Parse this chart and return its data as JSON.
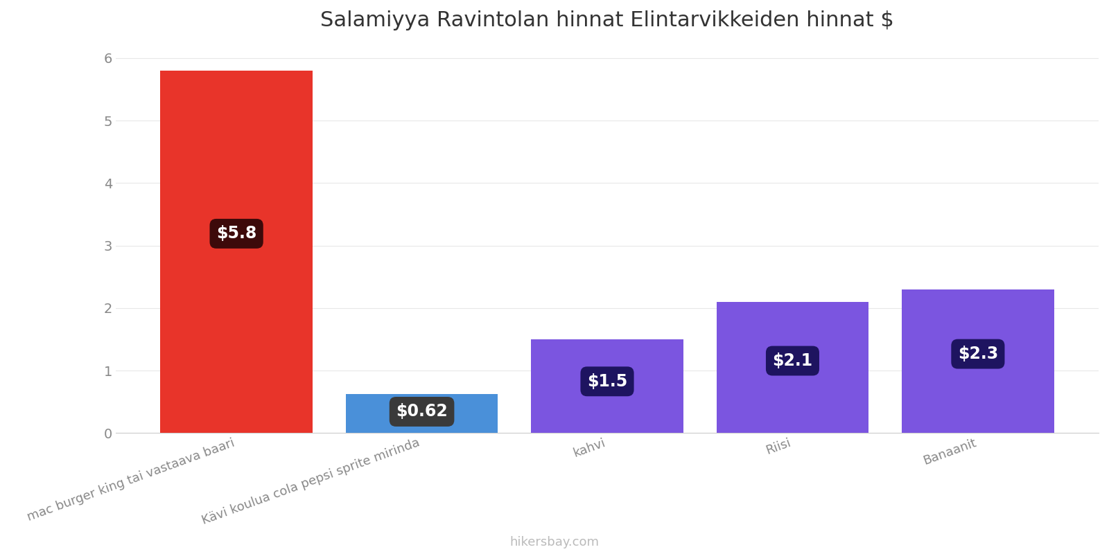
{
  "title": "Salamiyya Ravintolan hinnat Elintarvikkeiden hinnat $",
  "categories": [
    "mac burger king tai vastaava baari",
    "Kävi koulua cola pepsi sprite mirinda",
    "kahvi",
    "Riisi",
    "Banaanit"
  ],
  "values": [
    5.8,
    0.62,
    1.5,
    2.1,
    2.3
  ],
  "labels": [
    "$5.8",
    "$0.62",
    "$1.5",
    "$2.1",
    "$2.3"
  ],
  "bar_colors": [
    "#e8342a",
    "#4a90d9",
    "#7b55e0",
    "#7b55e0",
    "#7b55e0"
  ],
  "label_bg_colors": [
    "#3d0a0a",
    "#3a3a3a",
    "#1e1460",
    "#1e1460",
    "#1e1460"
  ],
  "ylim": [
    0,
    6.2
  ],
  "yticks": [
    0,
    1,
    2,
    3,
    4,
    5,
    6
  ],
  "title_fontsize": 22,
  "tick_fontsize": 14,
  "label_fontsize": 17,
  "xlabel_fontsize": 13,
  "watermark": "hikersbay.com",
  "background_color": "#ffffff",
  "grid_color": "#e8e8e8"
}
